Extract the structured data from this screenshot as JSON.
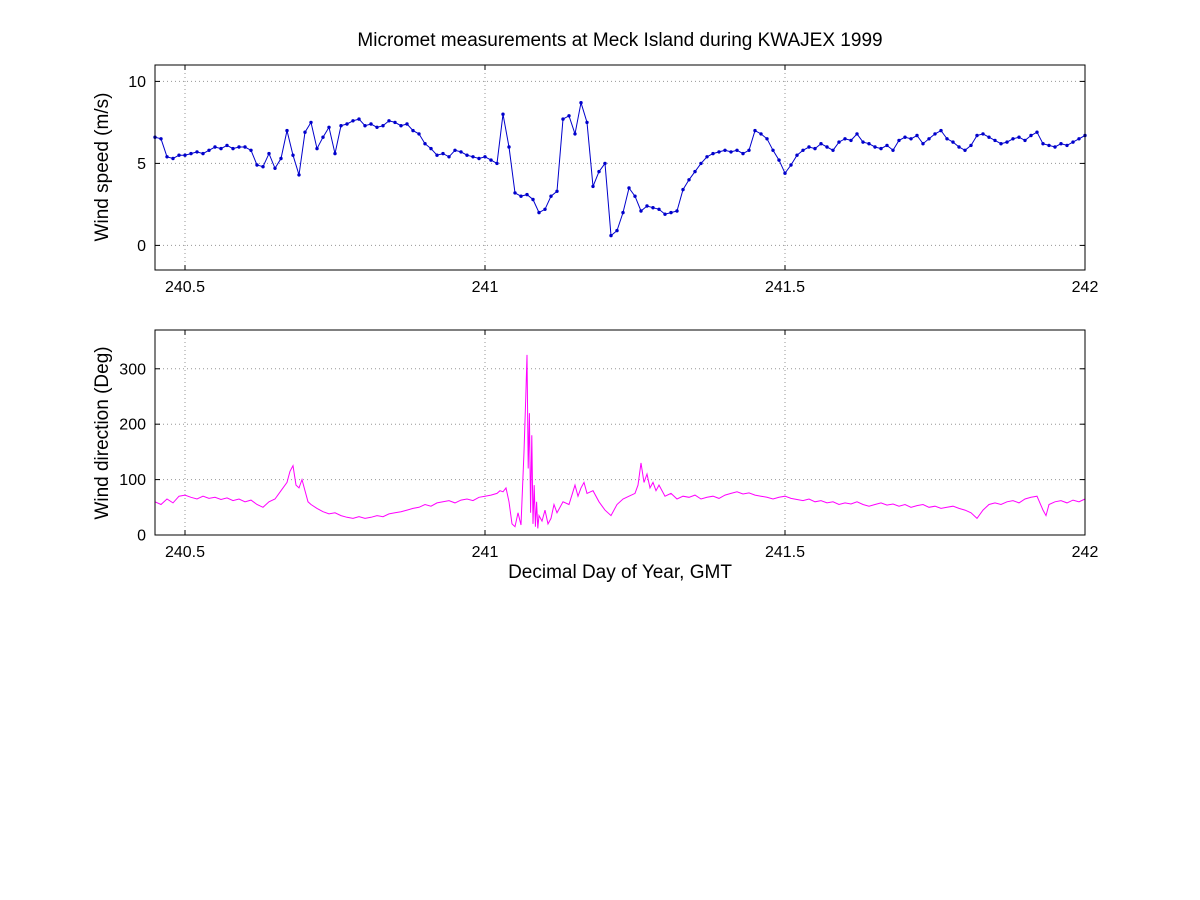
{
  "colors": {
    "background": "#ffffff",
    "axis": "#000000",
    "grid": "#969696",
    "wind_speed_line": "#0000cc",
    "wind_direction_line": "#ff00ff"
  },
  "chart_data": [
    {
      "type": "line",
      "name": "wind-speed",
      "title": "Micromet measurements at Meck Island during KWAJEX 1999",
      "ylabel": "Wind speed (m/s)",
      "color": "#0000cc",
      "marker": true,
      "grid": true,
      "xlim": [
        240.45,
        242.0
      ],
      "ylim": [
        -1.5,
        11.0
      ],
      "xticks": [
        240.5,
        241.0,
        241.5,
        242.0
      ],
      "xtick_labels": [
        "240.5",
        "241",
        "241.5",
        "242"
      ],
      "yticks": [
        0,
        5,
        10
      ],
      "ytick_labels": [
        "0",
        "5",
        "10"
      ],
      "x": [
        240.45,
        240.46,
        240.47,
        240.48,
        240.49,
        240.5,
        240.51,
        240.52,
        240.53,
        240.54,
        240.55,
        240.56,
        240.57,
        240.58,
        240.59,
        240.6,
        240.61,
        240.62,
        240.63,
        240.64,
        240.65,
        240.66,
        240.67,
        240.68,
        240.69,
        240.7,
        240.71,
        240.72,
        240.73,
        240.74,
        240.75,
        240.76,
        240.77,
        240.78,
        240.79,
        240.8,
        240.81,
        240.82,
        240.83,
        240.84,
        240.85,
        240.86,
        240.87,
        240.88,
        240.89,
        240.9,
        240.91,
        240.92,
        240.93,
        240.94,
        240.95,
        240.96,
        240.97,
        240.98,
        240.99,
        241.0,
        241.01,
        241.02,
        241.03,
        241.04,
        241.05,
        241.06,
        241.07,
        241.08,
        241.09,
        241.1,
        241.11,
        241.12,
        241.13,
        241.14,
        241.15,
        241.16,
        241.17,
        241.18,
        241.19,
        241.2,
        241.21,
        241.22,
        241.23,
        241.24,
        241.25,
        241.26,
        241.27,
        241.28,
        241.29,
        241.3,
        241.31,
        241.32,
        241.33,
        241.34,
        241.35,
        241.36,
        241.37,
        241.38,
        241.39,
        241.4,
        241.41,
        241.42,
        241.43,
        241.44,
        241.45,
        241.46,
        241.47,
        241.48,
        241.49,
        241.5,
        241.51,
        241.52,
        241.53,
        241.54,
        241.55,
        241.56,
        241.57,
        241.58,
        241.59,
        241.6,
        241.61,
        241.62,
        241.63,
        241.64,
        241.65,
        241.66,
        241.67,
        241.68,
        241.69,
        241.7,
        241.71,
        241.72,
        241.73,
        241.74,
        241.75,
        241.76,
        241.77,
        241.78,
        241.79,
        241.8,
        241.81,
        241.82,
        241.83,
        241.84,
        241.85,
        241.86,
        241.87,
        241.88,
        241.89,
        241.9,
        241.91,
        241.92,
        241.93,
        241.94,
        241.95,
        241.96,
        241.97,
        241.98,
        241.99,
        242.0
      ],
      "y": [
        6.6,
        6.5,
        5.4,
        5.3,
        5.5,
        5.5,
        5.6,
        5.7,
        5.6,
        5.8,
        6.0,
        5.9,
        6.1,
        5.9,
        6.0,
        6.0,
        5.8,
        4.9,
        4.8,
        5.6,
        4.7,
        5.3,
        7.0,
        5.5,
        4.3,
        6.9,
        7.5,
        5.9,
        6.6,
        7.2,
        5.6,
        7.3,
        7.4,
        7.6,
        7.7,
        7.3,
        7.4,
        7.2,
        7.3,
        7.6,
        7.5,
        7.3,
        7.4,
        7.0,
        6.8,
        6.2,
        5.9,
        5.5,
        5.6,
        5.4,
        5.8,
        5.7,
        5.5,
        5.4,
        5.3,
        5.4,
        5.2,
        5.0,
        8.0,
        6.0,
        3.2,
        3.0,
        3.1,
        2.8,
        2.0,
        2.2,
        3.0,
        3.3,
        7.7,
        7.9,
        6.8,
        8.7,
        7.5,
        3.6,
        4.5,
        5.0,
        0.6,
        0.9,
        2.0,
        3.5,
        3.0,
        2.1,
        2.4,
        2.3,
        2.2,
        1.9,
        2.0,
        2.1,
        3.4,
        4.0,
        4.5,
        5.0,
        5.4,
        5.6,
        5.7,
        5.8,
        5.7,
        5.8,
        5.6,
        5.8,
        7.0,
        6.8,
        6.5,
        5.8,
        5.2,
        4.4,
        4.9,
        5.5,
        5.8,
        6.0,
        5.9,
        6.2,
        6.0,
        5.8,
        6.3,
        6.5,
        6.4,
        6.8,
        6.3,
        6.2,
        6.0,
        5.9,
        6.1,
        5.8,
        6.4,
        6.6,
        6.5,
        6.7,
        6.2,
        6.5,
        6.8,
        7.0,
        6.5,
        6.3,
        6.0,
        5.8,
        6.1,
        6.7,
        6.8,
        6.6,
        6.4,
        6.2,
        6.3,
        6.5,
        6.6,
        6.4,
        6.7,
        6.9,
        6.2,
        6.1,
        6.0,
        6.2,
        6.1,
        6.3,
        6.5,
        6.7
      ]
    },
    {
      "type": "line",
      "name": "wind-direction",
      "xlabel": "Decimal Day of Year, GMT",
      "ylabel": "Wind direction (Deg)",
      "color": "#ff00ff",
      "marker": false,
      "grid": true,
      "xlim": [
        240.45,
        242.0
      ],
      "ylim": [
        0,
        370
      ],
      "xticks": [
        240.5,
        241.0,
        241.5,
        242.0
      ],
      "xtick_labels": [
        "240.5",
        "241",
        "241.5",
        "242"
      ],
      "yticks": [
        0,
        100,
        200,
        300
      ],
      "ytick_labels": [
        "0",
        "100",
        "200",
        "300"
      ],
      "x": [
        240.45,
        240.46,
        240.47,
        240.48,
        240.49,
        240.5,
        240.51,
        240.52,
        240.53,
        240.54,
        240.55,
        240.56,
        240.57,
        240.58,
        240.59,
        240.6,
        240.61,
        240.62,
        240.63,
        240.64,
        240.65,
        240.66,
        240.67,
        240.675,
        240.68,
        240.685,
        240.69,
        240.695,
        240.7,
        240.705,
        240.71,
        240.72,
        240.73,
        240.74,
        240.75,
        240.76,
        240.77,
        240.78,
        240.79,
        240.8,
        240.81,
        240.82,
        240.83,
        240.84,
        240.85,
        240.86,
        240.87,
        240.88,
        240.89,
        240.9,
        240.91,
        240.92,
        240.93,
        240.94,
        240.95,
        240.96,
        240.97,
        240.98,
        240.99,
        241.0,
        241.01,
        241.02,
        241.025,
        241.03,
        241.035,
        241.04,
        241.045,
        241.05,
        241.055,
        241.06,
        241.065,
        241.068,
        241.07,
        241.072,
        241.074,
        241.076,
        241.078,
        241.08,
        241.082,
        241.084,
        241.086,
        241.088,
        241.09,
        241.095,
        241.1,
        241.105,
        241.11,
        241.115,
        241.12,
        241.13,
        241.14,
        241.15,
        241.155,
        241.16,
        241.165,
        241.17,
        241.18,
        241.19,
        241.2,
        241.21,
        241.22,
        241.23,
        241.24,
        241.25,
        241.255,
        241.26,
        241.265,
        241.27,
        241.275,
        241.28,
        241.285,
        241.29,
        241.3,
        241.31,
        241.32,
        241.33,
        241.34,
        241.35,
        241.36,
        241.37,
        241.38,
        241.39,
        241.4,
        241.41,
        241.42,
        241.43,
        241.44,
        241.45,
        241.46,
        241.47,
        241.48,
        241.49,
        241.5,
        241.51,
        241.52,
        241.53,
        241.54,
        241.55,
        241.56,
        241.57,
        241.58,
        241.59,
        241.6,
        241.61,
        241.62,
        241.63,
        241.64,
        241.65,
        241.66,
        241.67,
        241.68,
        241.69,
        241.7,
        241.71,
        241.72,
        241.73,
        241.74,
        241.75,
        241.76,
        241.77,
        241.78,
        241.79,
        241.8,
        241.81,
        241.82,
        241.83,
        241.84,
        241.85,
        241.86,
        241.87,
        241.88,
        241.89,
        241.9,
        241.91,
        241.92,
        241.93,
        241.935,
        241.94,
        241.95,
        241.96,
        241.97,
        241.98,
        241.99,
        242.0
      ],
      "y": [
        60,
        55,
        65,
        58,
        70,
        72,
        68,
        65,
        70,
        66,
        68,
        64,
        67,
        62,
        65,
        60,
        63,
        55,
        50,
        60,
        65,
        80,
        95,
        115,
        125,
        90,
        85,
        100,
        80,
        60,
        55,
        48,
        42,
        38,
        40,
        35,
        32,
        30,
        33,
        30,
        32,
        35,
        33,
        38,
        40,
        42,
        45,
        48,
        50,
        55,
        52,
        58,
        60,
        62,
        58,
        63,
        65,
        62,
        68,
        70,
        72,
        75,
        80,
        78,
        85,
        60,
        20,
        15,
        40,
        18,
        150,
        250,
        325,
        120,
        220,
        40,
        180,
        20,
        90,
        15,
        60,
        12,
        35,
        25,
        45,
        20,
        30,
        55,
        40,
        60,
        55,
        90,
        70,
        85,
        95,
        75,
        80,
        60,
        45,
        35,
        55,
        65,
        70,
        75,
        90,
        130,
        95,
        110,
        85,
        95,
        80,
        90,
        70,
        75,
        65,
        70,
        68,
        72,
        65,
        68,
        70,
        66,
        72,
        75,
        78,
        74,
        76,
        72,
        70,
        68,
        65,
        68,
        70,
        66,
        64,
        62,
        65,
        60,
        62,
        58,
        60,
        55,
        58,
        56,
        60,
        55,
        52,
        55,
        58,
        54,
        56,
        52,
        55,
        50,
        53,
        55,
        50,
        52,
        48,
        50,
        52,
        48,
        45,
        40,
        30,
        45,
        55,
        58,
        55,
        60,
        62,
        58,
        65,
        68,
        70,
        45,
        35,
        55,
        60,
        62,
        58,
        63,
        60,
        65
      ]
    }
  ]
}
